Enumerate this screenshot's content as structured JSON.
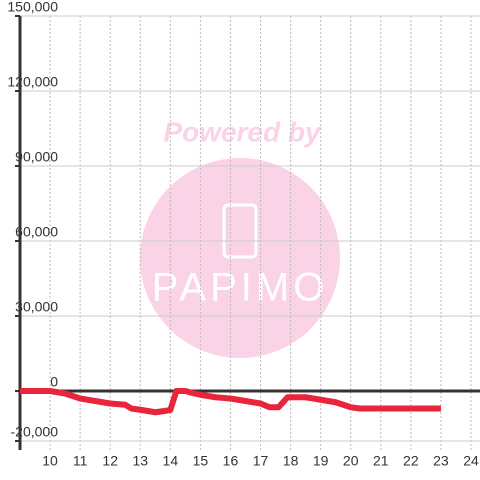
{
  "chart_data": {
    "type": "line",
    "x": [
      9,
      10,
      10.5,
      11,
      11.5,
      12,
      12.5,
      12.7,
      13,
      13.5,
      13.8,
      14,
      14.2,
      14.5,
      14.8,
      15,
      15.5,
      16,
      16.5,
      17,
      17.3,
      17.6,
      17.9,
      18.5,
      19,
      19.5,
      20,
      20.3,
      21,
      22,
      23
    ],
    "series": [
      {
        "color": "#e8253a",
        "values": [
          0,
          0,
          -1000,
          -3000,
          -4000,
          -5000,
          -5500,
          -7000,
          -7500,
          -8500,
          -8000,
          -7600,
          0,
          0,
          -1000,
          -1500,
          -2500,
          -3000,
          -4000,
          -5000,
          -6500,
          -6500,
          -2500,
          -2500,
          -3500,
          -4500,
          -6500,
          -7000,
          -7000,
          -7000,
          -7000
        ]
      }
    ],
    "xlim": [
      9,
      24.3
    ],
    "xticks": [
      10,
      11,
      12,
      13,
      14,
      15,
      16,
      17,
      18,
      19,
      20,
      21,
      22,
      23,
      24
    ],
    "ylim": [
      -20000,
      150000
    ],
    "yticks": [
      {
        "value": -20000,
        "label": "-20,000"
      },
      0,
      {
        "value": 30000,
        "label": "30,000"
      },
      {
        "value": 60000,
        "label": "60,000"
      },
      {
        "value": 90000,
        "label": "90,000"
      },
      {
        "value": 120000,
        "label": "120,000"
      },
      {
        "value": 150000,
        "label": "150,000"
      }
    ],
    "grid": true,
    "watermark": {
      "line1": "Powered by",
      "line2": "PAPIMO"
    }
  }
}
